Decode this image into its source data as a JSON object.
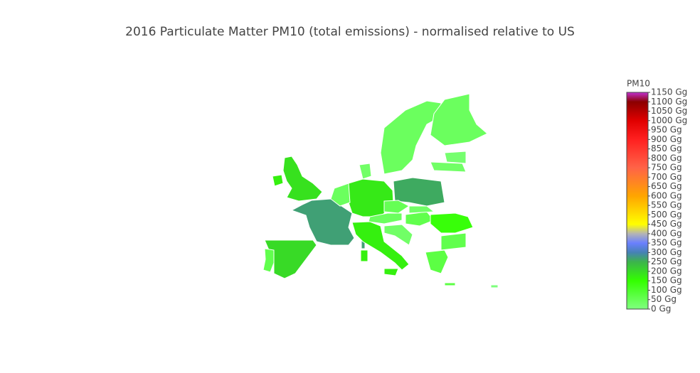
{
  "chart_data": {
    "type": "choropleth",
    "title": "2016 Particulate Matter PM10 (total emissions) - normalised relative to US",
    "colorbar_title": "PM10",
    "values": [
      190,
      170,
      270,
      200,
      60,
      180,
      40,
      30,
      260,
      50,
      40,
      60,
      30,
      140,
      60,
      70,
      170,
      30,
      40,
      40,
      20,
      30,
      5
    ],
    "zlim": [
      0,
      1150
    ],
    "colorscale": [
      [
        0,
        "#80ff80"
      ],
      [
        150,
        "#33ff00"
      ],
      [
        250,
        "#3cb44b"
      ],
      [
        300,
        "#4682b4"
      ],
      [
        350,
        "#6a7fff"
      ],
      [
        400,
        "#b4b4b4"
      ],
      [
        450,
        "#ffff00"
      ],
      [
        600,
        "#ffa500"
      ],
      [
        750,
        "#ff6347"
      ],
      [
        900,
        "#ff2020"
      ],
      [
        1000,
        "#e00000"
      ],
      [
        1100,
        "#8b0000"
      ],
      [
        1150,
        "#c030d0"
      ]
    ],
    "zticks": [
      {
        "value": 0,
        "label": "0 Gg"
      },
      {
        "value": 50,
        "label": "50 Gg"
      },
      {
        "value": 100,
        "label": "100 Gg"
      },
      {
        "value": 150,
        "label": "150 Gg"
      },
      {
        "value": 200,
        "label": "200 Gg"
      },
      {
        "value": 250,
        "label": "250 Gg"
      },
      {
        "value": 300,
        "label": "300 Gg"
      },
      {
        "value": 350,
        "label": "350 Gg"
      },
      {
        "value": 400,
        "label": "400 Gg"
      },
      {
        "value": 450,
        "label": "450 Gg"
      },
      {
        "value": 500,
        "label": "500 Gg"
      },
      {
        "value": 550,
        "label": "550 Gg"
      },
      {
        "value": 600,
        "label": "600 Gg"
      },
      {
        "value": 650,
        "label": "650 Gg"
      },
      {
        "value": 700,
        "label": "700 Gg"
      },
      {
        "value": 750,
        "label": "750 Gg"
      },
      {
        "value": 800,
        "label": "800 Gg"
      },
      {
        "value": 850,
        "label": "850 Gg"
      },
      {
        "value": 900,
        "label": "900 Gg"
      },
      {
        "value": 950,
        "label": "950 Gg"
      },
      {
        "value": 1000,
        "label": "1000 Gg"
      },
      {
        "value": 1050,
        "label": "1050 Gg"
      },
      {
        "value": 1100,
        "label": "1100 Gg"
      },
      {
        "value": 1150,
        "label": "1150 Gg"
      }
    ]
  }
}
